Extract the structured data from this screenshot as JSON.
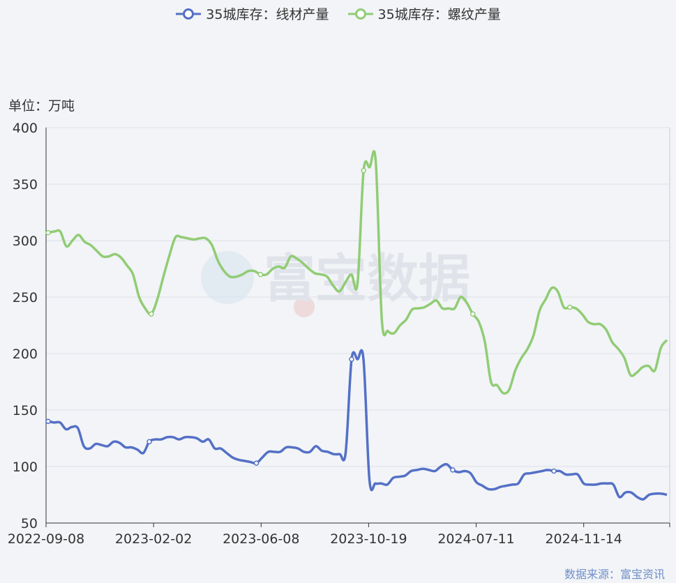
{
  "unit_label": "单位：万吨",
  "source_label": "数据来源：富宝资讯",
  "watermark": "富宝数据",
  "colors": {
    "wire": "#5470c6",
    "rebar": "#91cc75",
    "grid": "#dde1ea",
    "axis": "#333333",
    "background": "#f2f4f7"
  },
  "chart_data": {
    "type": "line",
    "title": "",
    "xlabel": "",
    "ylabel": "单位：万吨",
    "ylim": [
      50,
      400
    ],
    "yticks": [
      50,
      100,
      150,
      200,
      250,
      300,
      350,
      400
    ],
    "x_tick_labels": [
      "2022-09-08",
      "2023-02-02",
      "2023-06-08",
      "2023-10-19",
      "2024-07-11",
      "2024-11-14"
    ],
    "grid": true,
    "legend_position": "top-center",
    "series": [
      {
        "name": "35城库存：线材产量",
        "values": [
          140,
          139,
          139,
          133,
          135,
          134,
          118,
          116,
          120,
          119,
          118,
          122,
          121,
          117,
          117,
          115,
          112,
          122,
          124,
          124,
          126,
          126,
          124,
          126,
          126,
          125,
          122,
          124,
          116,
          116,
          112,
          108,
          106,
          105,
          104,
          103,
          108,
          113,
          113,
          113,
          117,
          117,
          116,
          113,
          113,
          118,
          114,
          113,
          111,
          111,
          112,
          195,
          195,
          195,
          88,
          85,
          85,
          84,
          90,
          91,
          92,
          96,
          97,
          98,
          97,
          96,
          100,
          102,
          97,
          95,
          96,
          94,
          86,
          83,
          80,
          80,
          82,
          83,
          84,
          85,
          93,
          94,
          95,
          96,
          97,
          96,
          96,
          93,
          93,
          93,
          85,
          84,
          84,
          85,
          85,
          84,
          73,
          77,
          77,
          73,
          71,
          75,
          76,
          76,
          75
        ],
        "markers": [
          0,
          17,
          35,
          51,
          68,
          85
        ]
      },
      {
        "name": "35城库存：螺纹产量",
        "values": [
          307,
          308,
          308,
          295,
          300,
          305,
          299,
          296,
          291,
          286,
          286,
          288,
          285,
          278,
          270,
          250,
          240,
          235,
          248,
          268,
          287,
          303,
          303,
          302,
          301,
          302,
          302,
          296,
          282,
          273,
          268,
          268,
          270,
          273,
          273,
          270,
          270,
          275,
          277,
          276,
          286,
          284,
          280,
          275,
          271,
          270,
          268,
          260,
          255,
          263,
          270,
          262,
          362,
          365,
          370,
          230,
          220,
          218,
          225,
          230,
          239,
          240,
          241,
          244,
          247,
          240,
          240,
          240,
          250,
          245,
          235,
          228,
          210,
          175,
          172,
          165,
          168,
          185,
          196,
          204,
          216,
          238,
          248,
          258,
          255,
          241,
          241,
          240,
          235,
          228,
          226,
          226,
          221,
          210,
          204,
          196,
          181,
          183,
          188,
          189,
          185,
          205,
          212
        ],
        "markers": [
          0,
          17,
          35,
          52,
          70,
          86
        ]
      }
    ]
  }
}
